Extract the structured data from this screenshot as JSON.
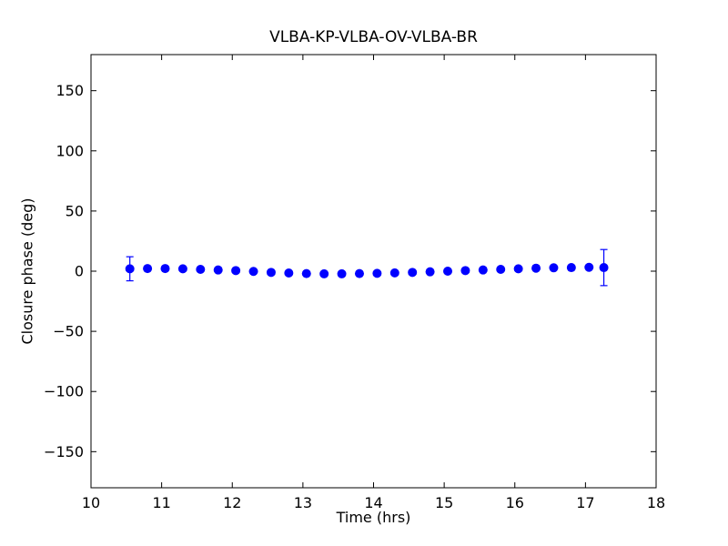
{
  "chart_data": {
    "type": "scatter",
    "title": "VLBA-KP-VLBA-OV-VLBA-BR",
    "xlabel": "Time (hrs)",
    "ylabel": "Closure phase (deg)",
    "xlim": [
      10,
      18
    ],
    "ylim": [
      -180,
      180
    ],
    "xticks": [
      10,
      11,
      12,
      13,
      14,
      15,
      16,
      17,
      18
    ],
    "yticks": [
      -150,
      -100,
      -50,
      0,
      50,
      100,
      150
    ],
    "grid": false,
    "legend": "none",
    "marker_color": "#0000ff",
    "axis_color": "#000000",
    "series": [
      {
        "name": "closure-phase",
        "marker": "circle",
        "x": [
          10.55,
          10.8,
          11.05,
          11.3,
          11.55,
          11.8,
          12.05,
          12.3,
          12.55,
          12.8,
          13.05,
          13.3,
          13.55,
          13.8,
          14.05,
          14.3,
          14.55,
          14.8,
          15.05,
          15.3,
          15.55,
          15.8,
          16.05,
          16.3,
          16.55,
          16.8,
          17.05,
          17.26
        ],
        "y": [
          2.0,
          2.2,
          2.2,
          2.0,
          1.5,
          1.0,
          0.5,
          -0.2,
          -1.0,
          -1.5,
          -2.0,
          -2.2,
          -2.2,
          -2.0,
          -1.8,
          -1.4,
          -1.0,
          -0.5,
          0.0,
          0.5,
          1.0,
          1.5,
          2.0,
          2.5,
          2.8,
          3.0,
          3.2,
          3.0
        ],
        "yerr": [
          10,
          1,
          1,
          1,
          1,
          1,
          1,
          1,
          1,
          1,
          1,
          1,
          1,
          1,
          1,
          1,
          1,
          1,
          1,
          1,
          1,
          1,
          1,
          1,
          1,
          1,
          1,
          15
        ]
      }
    ]
  }
}
